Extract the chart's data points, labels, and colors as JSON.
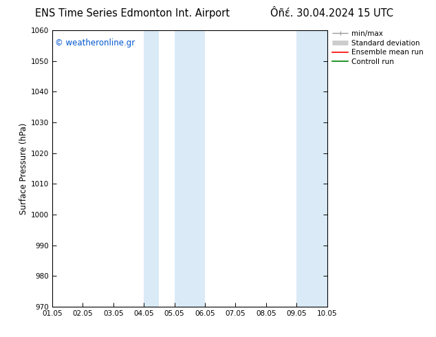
{
  "title_left": "ENS Time Series Edmonton Int. Airport",
  "title_right": "Ôñέ. 30.04.2024 15 UTC",
  "ylabel": "Surface Pressure (hPa)",
  "ylim": [
    970,
    1060
  ],
  "yticks": [
    970,
    980,
    990,
    1000,
    1010,
    1020,
    1030,
    1040,
    1050,
    1060
  ],
  "xlim": [
    0,
    9
  ],
  "xtick_labels": [
    "01.05",
    "02.05",
    "03.05",
    "04.05",
    "05.05",
    "06.05",
    "07.05",
    "08.05",
    "09.05",
    "10.05"
  ],
  "watermark": "© weatheronline.gr",
  "watermark_color": "#0055cc",
  "shaded_bands": [
    {
      "x_start": 3.0,
      "x_end": 3.5,
      "color": "#daeaf7"
    },
    {
      "x_start": 4.0,
      "x_end": 5.0,
      "color": "#daeaf7"
    },
    {
      "x_start": 8.0,
      "x_end": 8.5,
      "color": "#daeaf7"
    },
    {
      "x_start": 8.5,
      "x_end": 9.0,
      "color": "#daeaf7"
    }
  ],
  "legend_items": [
    {
      "label": "min/max",
      "color": "#999999",
      "lw": 1.0
    },
    {
      "label": "Standard deviation",
      "color": "#cccccc",
      "lw": 5
    },
    {
      "label": "Ensemble mean run",
      "color": "#ff0000",
      "lw": 1.2
    },
    {
      "label": "Controll run",
      "color": "#008000",
      "lw": 1.2
    }
  ],
  "bg_color": "#ffffff",
  "spine_color": "#000000",
  "tick_color": "#000000",
  "title_fontsize": 10.5,
  "label_fontsize": 8.5,
  "tick_fontsize": 7.5,
  "legend_fontsize": 7.5
}
